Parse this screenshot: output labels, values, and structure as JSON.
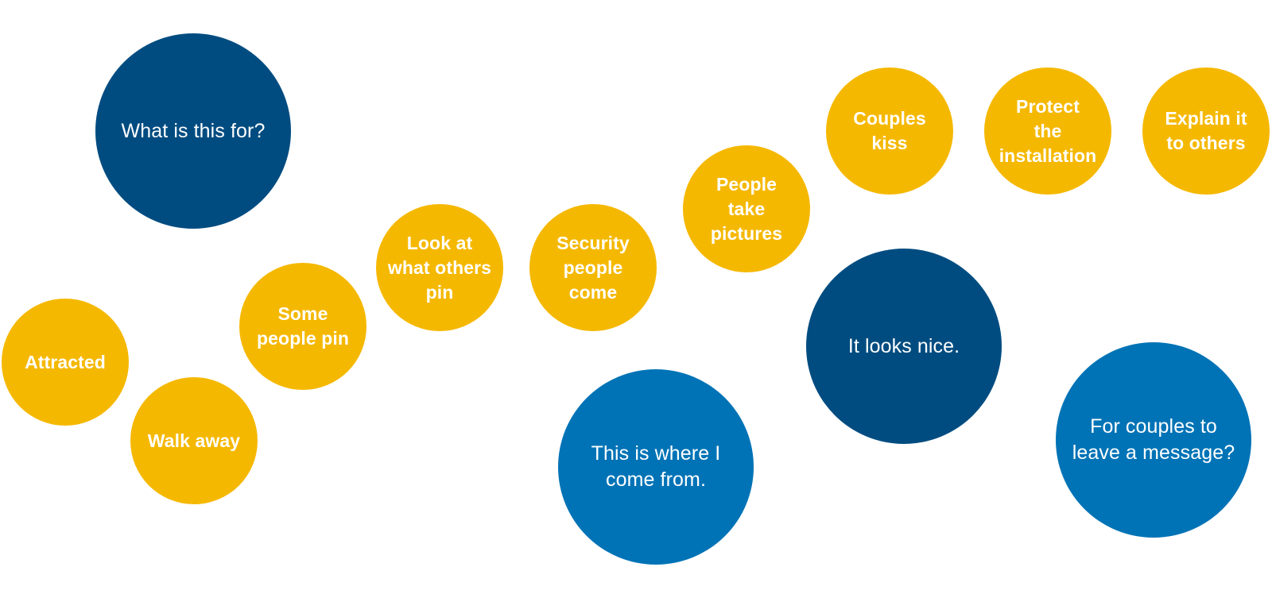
{
  "colors": {
    "yellow": "#f5b800",
    "dark_blue": "#004c80",
    "mid_blue": "#0073b6",
    "text": "#ffffff",
    "background": "#ffffff"
  },
  "bubbles": {
    "what_is_this_for": "What is this for?",
    "attracted": "Attracted",
    "walk_away": "Walk away",
    "some_people_pin": "Some\npeople pin",
    "look_at_what_others_pin": "Look at\nwhat others\npin",
    "security_people_come": "Security\npeople\ncome",
    "people_take_pictures": "People\ntake\npictures",
    "couples_kiss": "Couples\nkiss",
    "protect_the_installation": "Protect\nthe\ninstallation",
    "explain_it_to_others": "Explain it\nto others",
    "it_looks_nice": "It looks nice.",
    "this_is_where_i_come_from": "This is where I\ncome from.",
    "for_couples_to_leave_a_message": "For couples to\nleave a message?"
  }
}
